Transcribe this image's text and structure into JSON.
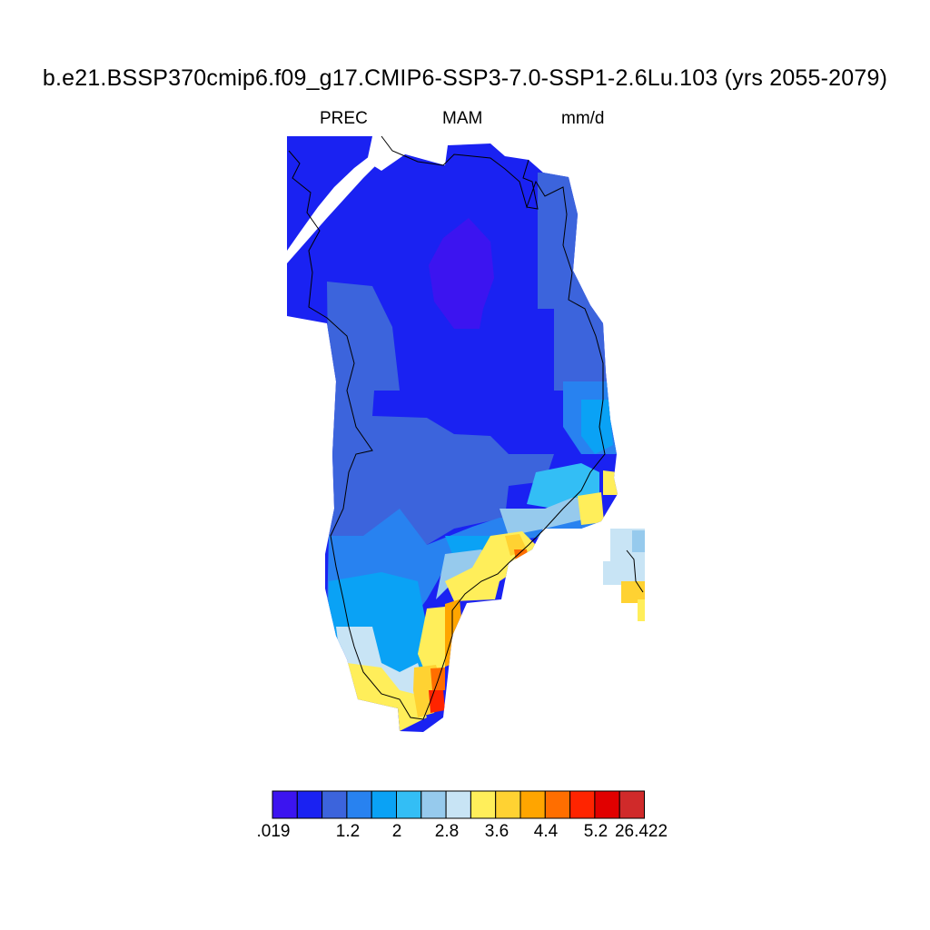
{
  "figure": {
    "title": "b.e21.BSSP370cmip6.f09_g17.CMIP6-SSP3-7.0-SSP1-2.6Lu.103 (yrs 2055-2079)",
    "variable": "PREC",
    "season": "MAM",
    "units": "mm/d"
  },
  "colorbar": {
    "colors": [
      "#3c14f0",
      "#1a22f2",
      "#3c64dc",
      "#2882f0",
      "#0aa2f5",
      "#33bef5",
      "#96caed",
      "#c8e4f5",
      "#ffee5a",
      "#ffd232",
      "#ffa500",
      "#ff6e00",
      "#ff2400",
      "#e10000",
      "#d02a2a"
    ],
    "tick_labels": [
      ".019",
      "1.2",
      "2",
      "2.8",
      "3.6",
      "4.4",
      "5.2",
      "26.422"
    ]
  },
  "map": {
    "region": "Greenland",
    "field_note_levels": [
      "lowest values over northern interior",
      "highest values along south-east coast"
    ]
  }
}
